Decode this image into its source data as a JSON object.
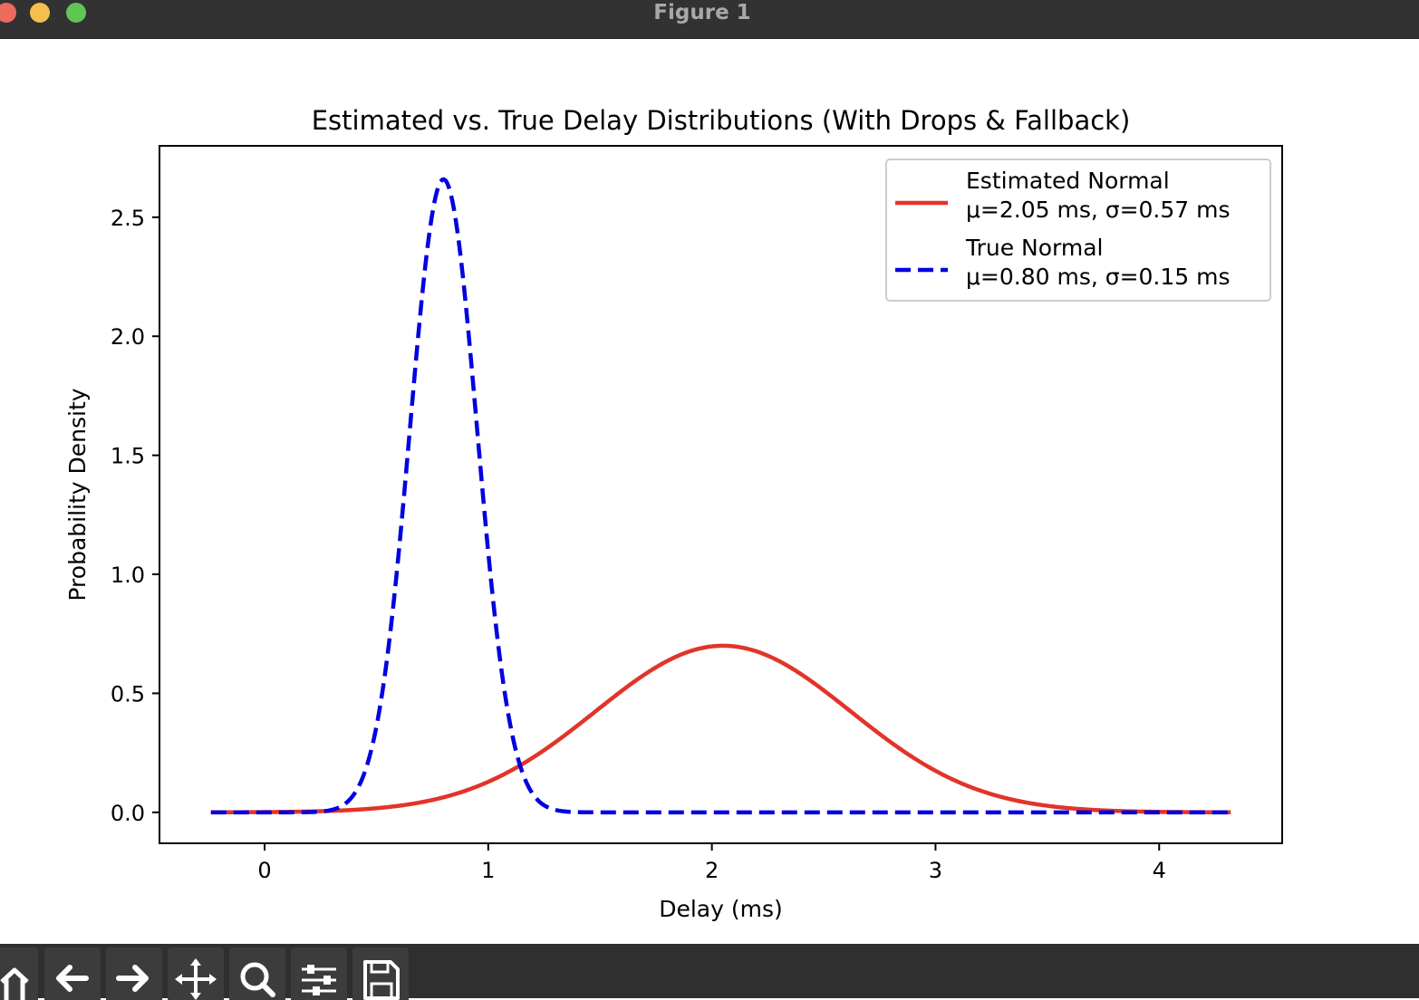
{
  "window": {
    "title": "Figure 1",
    "traffic_lights": [
      {
        "name": "close",
        "color": "#ed6a5e"
      },
      {
        "name": "minimize",
        "color": "#f5bf4f"
      },
      {
        "name": "maximize",
        "color": "#61c554"
      }
    ]
  },
  "toolbar": {
    "buttons": [
      {
        "name": "home",
        "icon": "home-icon"
      },
      {
        "name": "back",
        "icon": "arrow-left-icon"
      },
      {
        "name": "forward",
        "icon": "arrow-right-icon"
      },
      {
        "name": "pan",
        "icon": "move-icon"
      },
      {
        "name": "zoom",
        "icon": "magnifier-icon"
      },
      {
        "name": "configure-subplots",
        "icon": "sliders-icon"
      },
      {
        "name": "save",
        "icon": "floppy-disk-icon"
      }
    ]
  },
  "chart_data": {
    "type": "line",
    "title": "Estimated vs. True Delay Distributions (With Drops & Fallback)",
    "xlabel": "Delay (ms)",
    "ylabel": "Probability Density",
    "xlim": [
      -0.47,
      4.55
    ],
    "ylim": [
      -0.13,
      2.8
    ],
    "xticks": [
      0,
      1,
      2,
      3,
      4
    ],
    "xtick_labels": [
      "0",
      "1",
      "2",
      "3",
      "4"
    ],
    "yticks": [
      0.0,
      0.5,
      1.0,
      1.5,
      2.0,
      2.5
    ],
    "ytick_labels": [
      "0.0",
      "0.5",
      "1.0",
      "1.5",
      "2.0",
      "2.5"
    ],
    "grid": false,
    "legend_position": "top-right",
    "x_range": [
      -0.24,
      4.32
    ],
    "series": [
      {
        "name": "Estimated Normal",
        "legend_lines": [
          "Estimated Normal",
          "μ=2.05 ms, σ=0.57 ms"
        ],
        "distribution": "normal",
        "mu": 2.05,
        "sigma": 0.57,
        "color": "#e2342a",
        "style": "solid"
      },
      {
        "name": "True Normal",
        "legend_lines": [
          "True Normal",
          "μ=0.80 ms, σ=0.15 ms"
        ],
        "distribution": "normal",
        "mu": 0.8,
        "sigma": 0.15,
        "color": "#0000e0",
        "style": "dashed"
      }
    ]
  }
}
